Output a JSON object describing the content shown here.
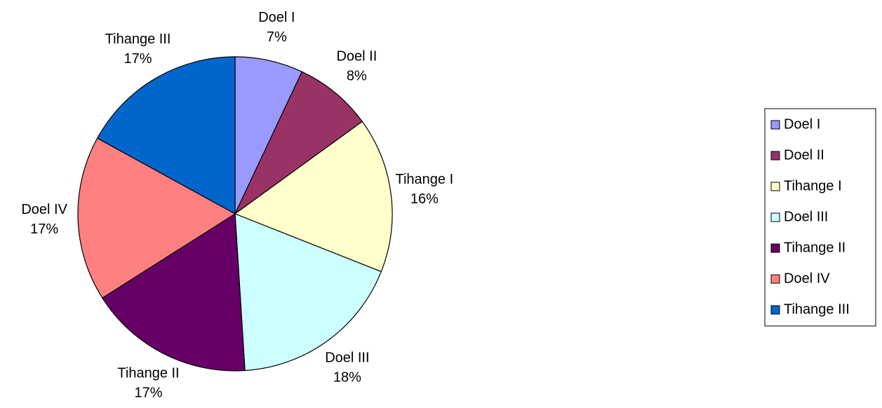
{
  "chart_data": {
    "type": "pie",
    "categories": [
      "Doel I",
      "Doel II",
      "Tihange I",
      "Doel III",
      "Tihange II",
      "Doel IV",
      "Tihange III"
    ],
    "values": [
      7,
      8,
      16,
      18,
      17,
      17,
      17
    ],
    "value_labels": [
      "7%",
      "8%",
      "16%",
      "18%",
      "17%",
      "17%",
      "17%"
    ],
    "colors": [
      "#9999ff",
      "#993366",
      "#ffffcc",
      "#ccffff",
      "#660066",
      "#ff8080",
      "#0066cc"
    ],
    "legend": "right"
  }
}
